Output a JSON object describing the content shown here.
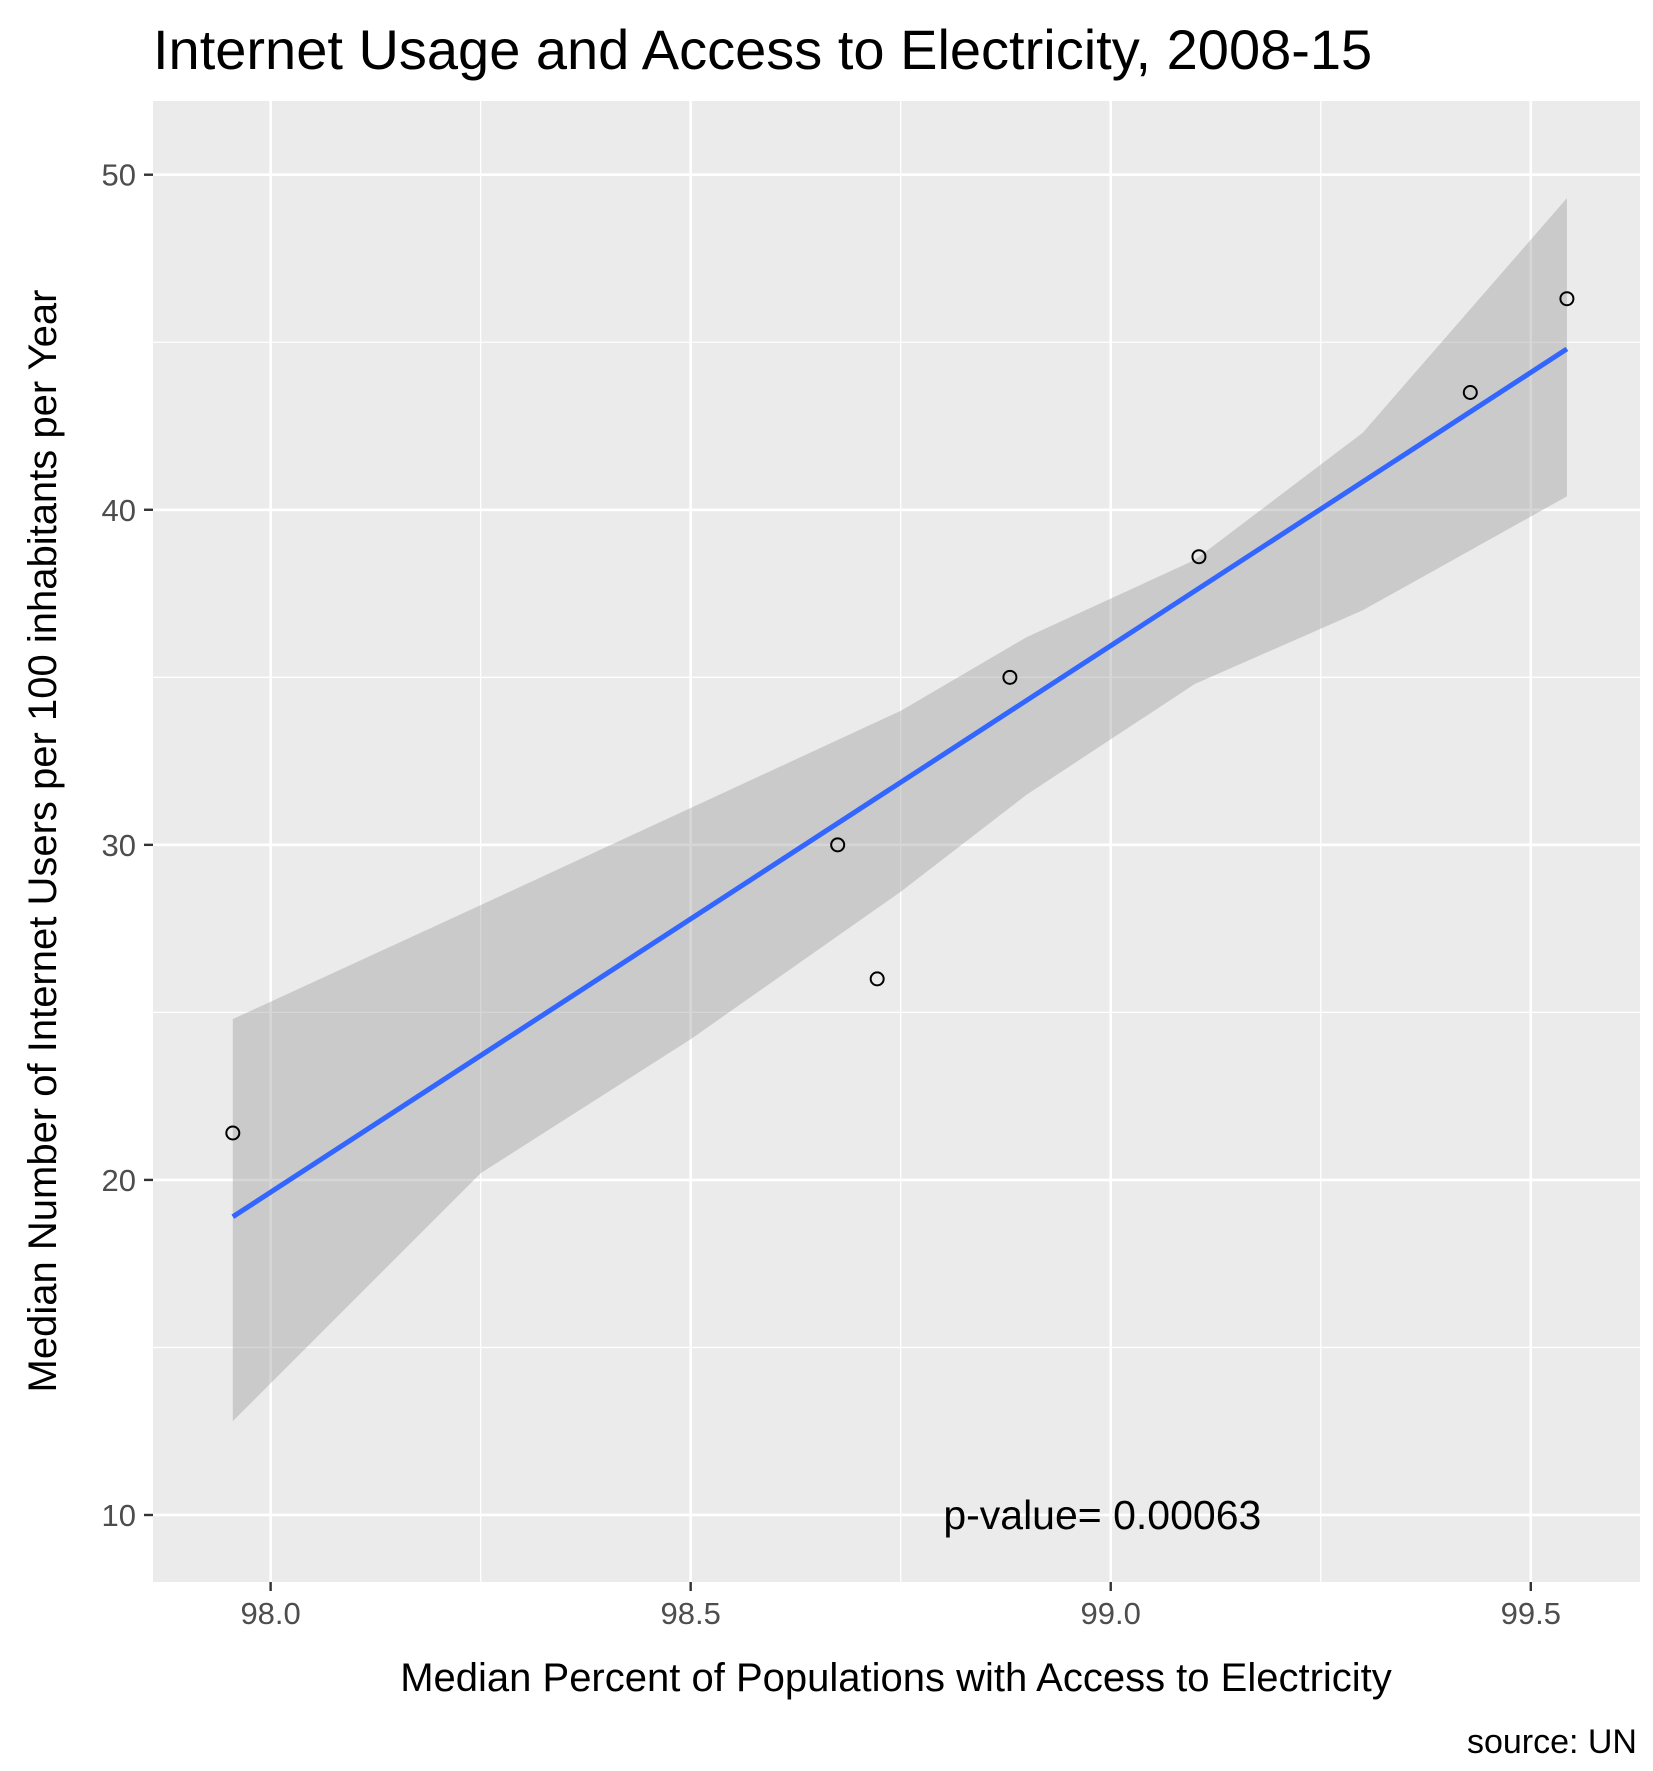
{
  "chart_data": {
    "type": "scatter",
    "title": "Internet Usage and Access to Electricity, 2008-15",
    "xlabel": "Median Percent of Populations with Access to Electricity",
    "ylabel": "Median Number of Internet Users per 100 inhabitants per Year",
    "caption": "source: UN",
    "annotation": {
      "text": "p-value= 0.00063",
      "x": 98.99,
      "y": 10.0
    },
    "xlim": [
      97.86,
      99.63
    ],
    "ylim": [
      8.0,
      52.2
    ],
    "x_ticks": [
      98.0,
      98.5,
      99.0,
      99.5
    ],
    "x_tick_labels": [
      "98.0",
      "98.5",
      "99.0",
      "99.5"
    ],
    "y_ticks": [
      10,
      20,
      30,
      40,
      50
    ],
    "y_tick_labels": [
      "10",
      "20",
      "30",
      "40",
      "50"
    ],
    "grid": true,
    "points": [
      {
        "x": 97.955,
        "y": 21.4
      },
      {
        "x": 98.675,
        "y": 30.0
      },
      {
        "x": 98.722,
        "y": 26.0
      },
      {
        "x": 98.88,
        "y": 35.0
      },
      {
        "x": 99.105,
        "y": 38.6
      },
      {
        "x": 99.428,
        "y": 43.5
      },
      {
        "x": 99.543,
        "y": 46.3
      }
    ],
    "fit_line": {
      "color": "#3366ff",
      "x": [
        97.955,
        99.543
      ],
      "y": [
        18.9,
        44.8
      ]
    },
    "confidence_band": {
      "color": "#999999",
      "x": [
        97.955,
        98.25,
        98.5,
        98.75,
        98.9,
        99.1,
        99.3,
        99.543
      ],
      "lower": [
        12.8,
        20.2,
        24.2,
        28.6,
        31.5,
        34.8,
        37.0,
        40.4
      ],
      "upper": [
        24.8,
        28.2,
        31.1,
        34.0,
        36.2,
        38.5,
        42.3,
        49.3
      ]
    },
    "colors": {
      "panel_background": "#ebebeb",
      "grid": "#ffffff",
      "point_stroke": "#000000",
      "tick_text": "#4d4d4d"
    }
  }
}
